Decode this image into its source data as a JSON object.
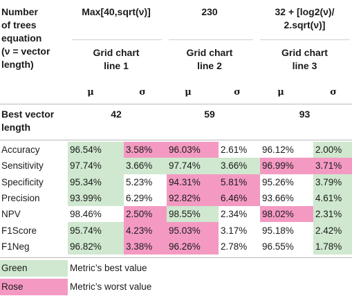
{
  "header": {
    "row_label": [
      "Number",
      "of trees",
      "equation",
      "(ν = vector",
      "length)"
    ],
    "columns": [
      {
        "equation": [
          "Max[40,sqrt(ν)]"
        ],
        "grid_chart": [
          "Grid chart",
          "line 1"
        ],
        "best_vector_length": "42"
      },
      {
        "equation": [
          "230"
        ],
        "grid_chart": [
          "Grid chart",
          "line 2"
        ],
        "best_vector_length": "59"
      },
      {
        "equation": [
          "32 + [log2(ν)/",
          "2.sqrt(ν)]"
        ],
        "grid_chart": [
          "Grid chart",
          "line 3"
        ],
        "best_vector_length": "93"
      }
    ],
    "mu": "μ",
    "sigma": "σ",
    "best_vector_label": [
      "Best vector",
      "length"
    ]
  },
  "rows": [
    {
      "label": "Accuracy",
      "cells": [
        {
          "v": "96.54%",
          "c": "g"
        },
        {
          "v": "3.58%",
          "c": "r"
        },
        {
          "v": "96.03%",
          "c": "r"
        },
        {
          "v": "2.61%",
          "c": ""
        },
        {
          "v": "96.12%",
          "c": ""
        },
        {
          "v": "2.00%",
          "c": "g"
        }
      ]
    },
    {
      "label": "Sensitivity",
      "cells": [
        {
          "v": "97.74%",
          "c": "g"
        },
        {
          "v": "3.66%",
          "c": "g"
        },
        {
          "v": "97.74%",
          "c": "g"
        },
        {
          "v": "3.66%",
          "c": "g"
        },
        {
          "v": "96.99%",
          "c": "r"
        },
        {
          "v": "3.71%",
          "c": "r"
        }
      ]
    },
    {
      "label": "Specificity",
      "cells": [
        {
          "v": "95.34%",
          "c": "g"
        },
        {
          "v": "5.23%",
          "c": ""
        },
        {
          "v": "94.31%",
          "c": "r"
        },
        {
          "v": "5.81%",
          "c": "r"
        },
        {
          "v": "95.26%",
          "c": ""
        },
        {
          "v": "3.79%",
          "c": "g"
        }
      ]
    },
    {
      "label": "Precision",
      "cells": [
        {
          "v": "93.99%",
          "c": "g"
        },
        {
          "v": "6.29%",
          "c": ""
        },
        {
          "v": "92.82%",
          "c": "r"
        },
        {
          "v": "6.46%",
          "c": "r"
        },
        {
          "v": "93.66%",
          "c": ""
        },
        {
          "v": "4.61%",
          "c": "g"
        }
      ]
    },
    {
      "label": "NPV",
      "cells": [
        {
          "v": "98.46%",
          "c": ""
        },
        {
          "v": "2.50%",
          "c": "r"
        },
        {
          "v": "98.55%",
          "c": "g"
        },
        {
          "v": "2.34%",
          "c": ""
        },
        {
          "v": "98.02%",
          "c": "r"
        },
        {
          "v": "2.31%",
          "c": "g"
        }
      ]
    },
    {
      "label": "F1Score",
      "cells": [
        {
          "v": "95.74%",
          "c": "g"
        },
        {
          "v": "4.23%",
          "c": "r"
        },
        {
          "v": "95.03%",
          "c": "r"
        },
        {
          "v": "3.17%",
          "c": ""
        },
        {
          "v": "95.18%",
          "c": ""
        },
        {
          "v": "2.42%",
          "c": "g"
        }
      ]
    },
    {
      "label": "F1Neg",
      "cells": [
        {
          "v": "96.82%",
          "c": "g"
        },
        {
          "v": "3.38%",
          "c": "r"
        },
        {
          "v": "96.26%",
          "c": "r"
        },
        {
          "v": "2.78%",
          "c": ""
        },
        {
          "v": "96.55%",
          "c": ""
        },
        {
          "v": "1.78%",
          "c": "g"
        }
      ]
    }
  ],
  "legend": [
    {
      "label": "Green",
      "text": "Metric’s best value",
      "c": "g"
    },
    {
      "label": "Rose",
      "text": "Metric’s worst value",
      "c": "r"
    }
  ],
  "colors": {
    "green": "#cfe8cf",
    "rose": "#f49ac2"
  }
}
